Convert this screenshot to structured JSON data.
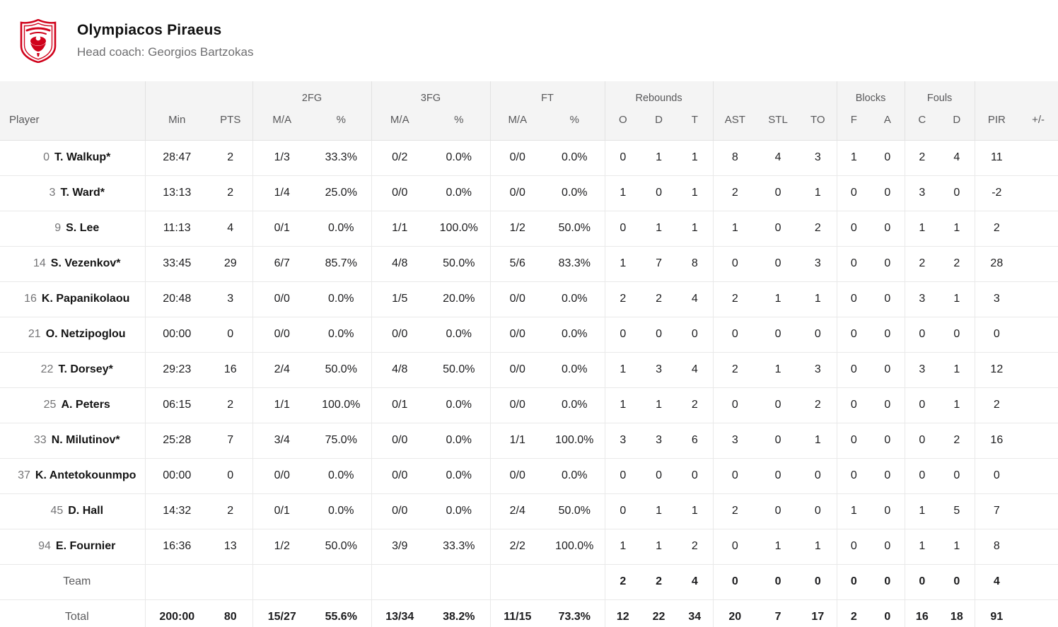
{
  "team": {
    "name": "Olympiacos Piraeus",
    "coach_line": "Head coach: Georgios Bartzokas",
    "logo_name": "olympiacos-crest",
    "logo_color": "#d0021b"
  },
  "table": {
    "groups": {
      "fg2": "2FG",
      "fg3": "3FG",
      "ft": "FT",
      "rebounds": "Rebounds",
      "blocks": "Blocks",
      "fouls": "Fouls"
    },
    "columns": {
      "player": "Player",
      "min": "Min",
      "pts": "PTS",
      "ma2": "M/A",
      "pct2": "%",
      "ma3": "M/A",
      "pct3": "%",
      "maft": "M/A",
      "pctft": "%",
      "reb_o": "O",
      "reb_d": "D",
      "reb_t": "T",
      "ast": "AST",
      "stl": "STL",
      "to": "TO",
      "blk_f": "F",
      "blk_a": "A",
      "foul_c": "C",
      "foul_d": "D",
      "pir": "PIR",
      "plus_minus": "+/-"
    },
    "players": [
      {
        "num": "0",
        "name": "T. Walkup*",
        "cells": [
          "28:47",
          "2",
          "1/3",
          "33.3%",
          "0/2",
          "0.0%",
          "0/0",
          "0.0%",
          "0",
          "1",
          "1",
          "8",
          "4",
          "3",
          "1",
          "0",
          "2",
          "4",
          "11",
          ""
        ]
      },
      {
        "num": "3",
        "name": "T. Ward*",
        "cells": [
          "13:13",
          "2",
          "1/4",
          "25.0%",
          "0/0",
          "0.0%",
          "0/0",
          "0.0%",
          "1",
          "0",
          "1",
          "2",
          "0",
          "1",
          "0",
          "0",
          "3",
          "0",
          "-2",
          ""
        ]
      },
      {
        "num": "9",
        "name": "S. Lee",
        "cells": [
          "11:13",
          "4",
          "0/1",
          "0.0%",
          "1/1",
          "100.0%",
          "1/2",
          "50.0%",
          "0",
          "1",
          "1",
          "1",
          "0",
          "2",
          "0",
          "0",
          "1",
          "1",
          "2",
          ""
        ]
      },
      {
        "num": "14",
        "name": "S. Vezenkov*",
        "cells": [
          "33:45",
          "29",
          "6/7",
          "85.7%",
          "4/8",
          "50.0%",
          "5/6",
          "83.3%",
          "1",
          "7",
          "8",
          "0",
          "0",
          "3",
          "0",
          "0",
          "2",
          "2",
          "28",
          ""
        ]
      },
      {
        "num": "16",
        "name": "K. Papanikolaou",
        "cells": [
          "20:48",
          "3",
          "0/0",
          "0.0%",
          "1/5",
          "20.0%",
          "0/0",
          "0.0%",
          "2",
          "2",
          "4",
          "2",
          "1",
          "1",
          "0",
          "0",
          "3",
          "1",
          "3",
          ""
        ]
      },
      {
        "num": "21",
        "name": "O. Netzipoglou",
        "cells": [
          "00:00",
          "0",
          "0/0",
          "0.0%",
          "0/0",
          "0.0%",
          "0/0",
          "0.0%",
          "0",
          "0",
          "0",
          "0",
          "0",
          "0",
          "0",
          "0",
          "0",
          "0",
          "0",
          ""
        ]
      },
      {
        "num": "22",
        "name": "T. Dorsey*",
        "cells": [
          "29:23",
          "16",
          "2/4",
          "50.0%",
          "4/8",
          "50.0%",
          "0/0",
          "0.0%",
          "1",
          "3",
          "4",
          "2",
          "1",
          "3",
          "0",
          "0",
          "3",
          "1",
          "12",
          ""
        ]
      },
      {
        "num": "25",
        "name": "A. Peters",
        "cells": [
          "06:15",
          "2",
          "1/1",
          "100.0%",
          "0/1",
          "0.0%",
          "0/0",
          "0.0%",
          "1",
          "1",
          "2",
          "0",
          "0",
          "2",
          "0",
          "0",
          "0",
          "1",
          "2",
          ""
        ]
      },
      {
        "num": "33",
        "name": "N. Milutinov*",
        "cells": [
          "25:28",
          "7",
          "3/4",
          "75.0%",
          "0/0",
          "0.0%",
          "1/1",
          "100.0%",
          "3",
          "3",
          "6",
          "3",
          "0",
          "1",
          "0",
          "0",
          "0",
          "2",
          "16",
          ""
        ]
      },
      {
        "num": "37",
        "name": "K. Antetokounmpo",
        "cells": [
          "00:00",
          "0",
          "0/0",
          "0.0%",
          "0/0",
          "0.0%",
          "0/0",
          "0.0%",
          "0",
          "0",
          "0",
          "0",
          "0",
          "0",
          "0",
          "0",
          "0",
          "0",
          "0",
          ""
        ]
      },
      {
        "num": "45",
        "name": "D. Hall",
        "cells": [
          "14:32",
          "2",
          "0/1",
          "0.0%",
          "0/0",
          "0.0%",
          "2/4",
          "50.0%",
          "0",
          "1",
          "1",
          "2",
          "0",
          "0",
          "1",
          "0",
          "1",
          "5",
          "7",
          ""
        ]
      },
      {
        "num": "94",
        "name": "E. Fournier",
        "cells": [
          "16:36",
          "13",
          "1/2",
          "50.0%",
          "3/9",
          "33.3%",
          "2/2",
          "100.0%",
          "1",
          "1",
          "2",
          "0",
          "1",
          "1",
          "0",
          "0",
          "1",
          "1",
          "8",
          ""
        ]
      }
    ],
    "team_row": {
      "label": "Team",
      "cells": [
        "",
        "",
        "",
        "",
        "",
        "",
        "",
        "",
        "2",
        "2",
        "4",
        "0",
        "0",
        "0",
        "0",
        "0",
        "0",
        "0",
        "4",
        ""
      ]
    },
    "total_row": {
      "label": "Total",
      "cells": [
        "200:00",
        "80",
        "15/27",
        "55.6%",
        "13/34",
        "38.2%",
        "11/15",
        "73.3%",
        "12",
        "22",
        "34",
        "20",
        "7",
        "17",
        "2",
        "0",
        "16",
        "18",
        "91",
        ""
      ]
    }
  },
  "colors": {
    "accent_red": "#d0021b",
    "header_bg": "#f4f4f4",
    "border": "#e9e9e9",
    "muted_text": "#6e6e70",
    "dark_text": "#1c1c1e"
  }
}
